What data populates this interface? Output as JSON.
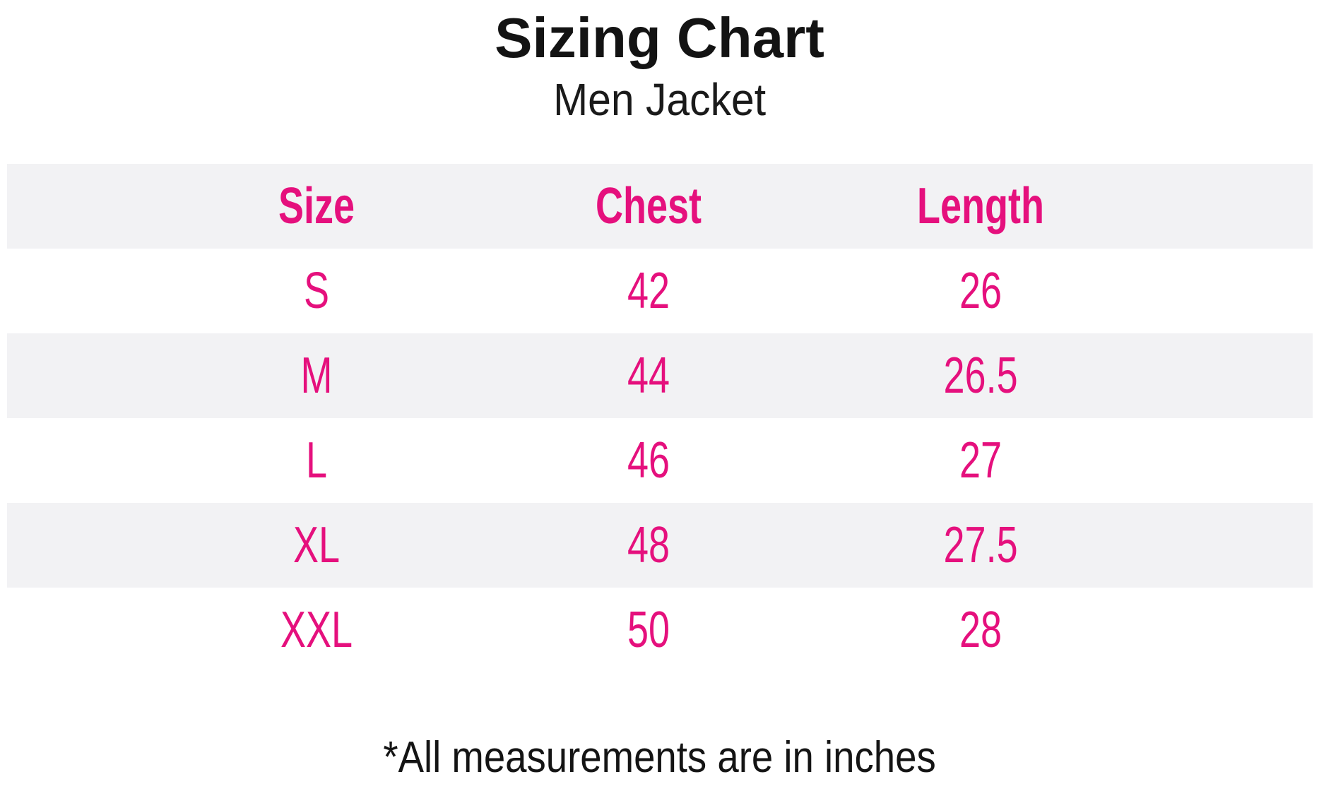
{
  "title": "Sizing Chart",
  "subtitle": "Men Jacket",
  "footnote": "*All measurements are in inches",
  "colors": {
    "accent_pink": "#e5107d",
    "alt_row_bg": "#f2f2f4",
    "text_black": "#141414",
    "page_bg": "#ffffff"
  },
  "chart_data": {
    "type": "table",
    "title": "Sizing Chart",
    "subtitle": "Men Jacket",
    "units": "inches",
    "note": "*All measurements are in inches",
    "columns": [
      "Size",
      "Chest",
      "Length"
    ],
    "rows": [
      {
        "size": "S",
        "chest": 42,
        "length": 26
      },
      {
        "size": "M",
        "chest": 44,
        "length": 26.5
      },
      {
        "size": "L",
        "chest": 46,
        "length": 27
      },
      {
        "size": "XL",
        "chest": 48,
        "length": 27.5
      },
      {
        "size": "XXL",
        "chest": 50,
        "length": 28
      }
    ],
    "layout": {
      "row_striping": "header and alternating rows shaded light gray",
      "alignment": "all cells centered"
    }
  }
}
